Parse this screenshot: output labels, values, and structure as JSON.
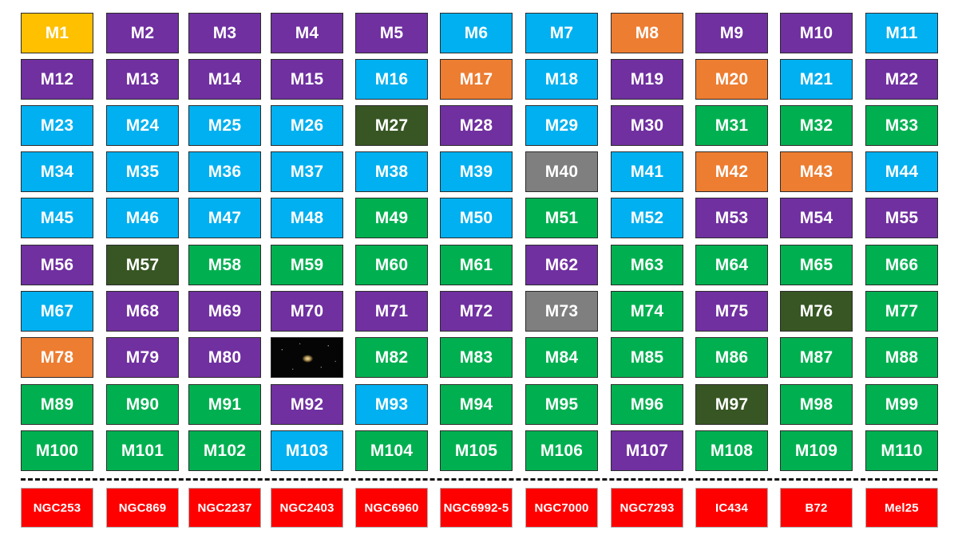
{
  "colors": {
    "yellow": "#ffc000",
    "purple": "#7030a0",
    "blue": "#00b0f0",
    "orange": "#ed7d31",
    "green": "#00b050",
    "darkgreen": "#375623",
    "gray": "#7f7f7f",
    "red": "#ff0000"
  },
  "messier_rows": [
    [
      [
        "M1",
        "yellow"
      ],
      [
        "M2",
        "purple"
      ],
      [
        "M3",
        "purple"
      ],
      [
        "M4",
        "purple"
      ],
      [
        "M5",
        "purple"
      ],
      [
        "M6",
        "blue"
      ],
      [
        "M7",
        "blue"
      ],
      [
        "M8",
        "orange"
      ],
      [
        "M9",
        "purple"
      ],
      [
        "M10",
        "purple"
      ],
      [
        "M11",
        "blue"
      ]
    ],
    [
      [
        "M12",
        "purple"
      ],
      [
        "M13",
        "purple"
      ],
      [
        "M14",
        "purple"
      ],
      [
        "M15",
        "purple"
      ],
      [
        "M16",
        "blue"
      ],
      [
        "M17",
        "orange"
      ],
      [
        "M18",
        "blue"
      ],
      [
        "M19",
        "purple"
      ],
      [
        "M20",
        "orange"
      ],
      [
        "M21",
        "blue"
      ],
      [
        "M22",
        "purple"
      ]
    ],
    [
      [
        "M23",
        "blue"
      ],
      [
        "M24",
        "blue"
      ],
      [
        "M25",
        "blue"
      ],
      [
        "M26",
        "blue"
      ],
      [
        "M27",
        "darkgreen"
      ],
      [
        "M28",
        "purple"
      ],
      [
        "M29",
        "blue"
      ],
      [
        "M30",
        "purple"
      ],
      [
        "M31",
        "green"
      ],
      [
        "M32",
        "green"
      ],
      [
        "M33",
        "green"
      ]
    ],
    [
      [
        "M34",
        "blue"
      ],
      [
        "M35",
        "blue"
      ],
      [
        "M36",
        "blue"
      ],
      [
        "M37",
        "blue"
      ],
      [
        "M38",
        "blue"
      ],
      [
        "M39",
        "blue"
      ],
      [
        "M40",
        "gray"
      ],
      [
        "M41",
        "blue"
      ],
      [
        "M42",
        "orange"
      ],
      [
        "M43",
        "orange"
      ],
      [
        "M44",
        "blue"
      ]
    ],
    [
      [
        "M45",
        "blue"
      ],
      [
        "M46",
        "blue"
      ],
      [
        "M47",
        "blue"
      ],
      [
        "M48",
        "blue"
      ],
      [
        "M49",
        "green"
      ],
      [
        "M50",
        "blue"
      ],
      [
        "M51",
        "green"
      ],
      [
        "M52",
        "blue"
      ],
      [
        "M53",
        "purple"
      ],
      [
        "M54",
        "purple"
      ],
      [
        "M55",
        "purple"
      ]
    ],
    [
      [
        "M56",
        "purple"
      ],
      [
        "M57",
        "darkgreen"
      ],
      [
        "M58",
        "green"
      ],
      [
        "M59",
        "green"
      ],
      [
        "M60",
        "green"
      ],
      [
        "M61",
        "green"
      ],
      [
        "M62",
        "purple"
      ],
      [
        "M63",
        "green"
      ],
      [
        "M64",
        "green"
      ],
      [
        "M65",
        "green"
      ],
      [
        "M66",
        "green"
      ]
    ],
    [
      [
        "M67",
        "blue"
      ],
      [
        "M68",
        "purple"
      ],
      [
        "M69",
        "purple"
      ],
      [
        "M70",
        "purple"
      ],
      [
        "M71",
        "purple"
      ],
      [
        "M72",
        "purple"
      ],
      [
        "M73",
        "gray"
      ],
      [
        "M74",
        "green"
      ],
      [
        "M75",
        "purple"
      ],
      [
        "M76",
        "darkgreen"
      ],
      [
        "M77",
        "green"
      ]
    ],
    [
      [
        "M78",
        "orange"
      ],
      [
        "M79",
        "purple"
      ],
      [
        "M80",
        "purple"
      ],
      [
        "",
        "photo"
      ],
      [
        "M82",
        "green"
      ],
      [
        "M83",
        "green"
      ],
      [
        "M84",
        "green"
      ],
      [
        "M85",
        "green"
      ],
      [
        "M86",
        "green"
      ],
      [
        "M87",
        "green"
      ],
      [
        "M88",
        "green"
      ]
    ],
    [
      [
        "M89",
        "green"
      ],
      [
        "M90",
        "green"
      ],
      [
        "M91",
        "green"
      ],
      [
        "M92",
        "purple"
      ],
      [
        "M93",
        "blue"
      ],
      [
        "M94",
        "green"
      ],
      [
        "M95",
        "green"
      ],
      [
        "M96",
        "green"
      ],
      [
        "M97",
        "darkgreen"
      ],
      [
        "M98",
        "green"
      ],
      [
        "M99",
        "green"
      ]
    ],
    [
      [
        "M100",
        "green"
      ],
      [
        "M101",
        "green"
      ],
      [
        "M102",
        "green"
      ],
      [
        "M103",
        "blue"
      ],
      [
        "M104",
        "green"
      ],
      [
        "M105",
        "green"
      ],
      [
        "M106",
        "green"
      ],
      [
        "M107",
        "purple"
      ],
      [
        "M108",
        "green"
      ],
      [
        "M109",
        "green"
      ],
      [
        "M110",
        "green"
      ]
    ]
  ],
  "extra_row": [
    "NGC253",
    "NGC869",
    "NGC2237",
    "NGC2403",
    "NGC6960",
    "NGC6992-5",
    "NGC7000",
    "NGC7293",
    "IC434",
    "B72",
    "Mel25"
  ]
}
